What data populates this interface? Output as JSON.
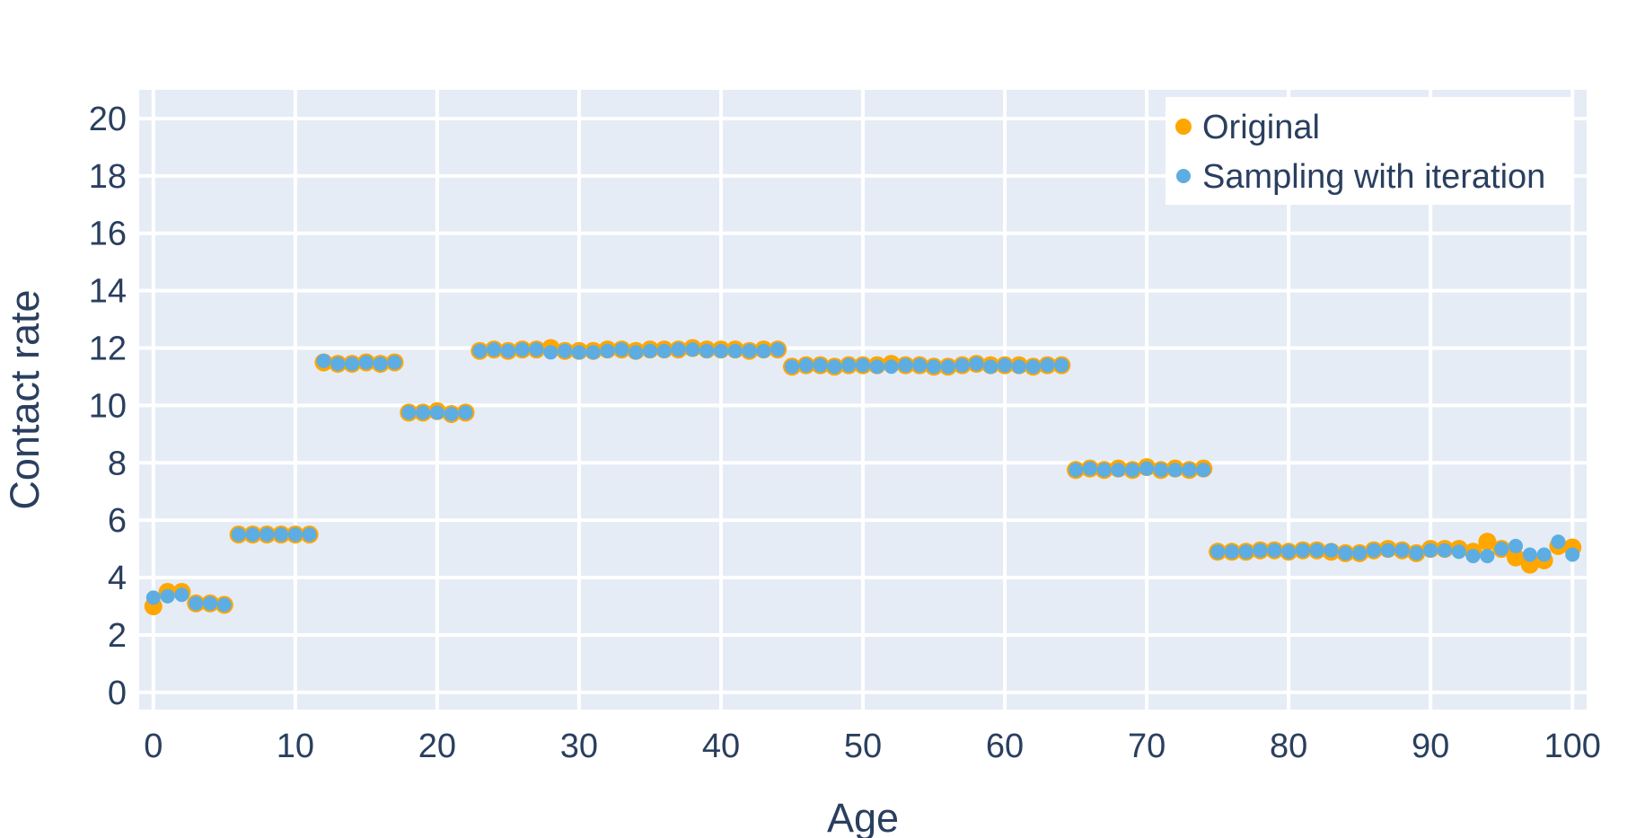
{
  "chart_data": {
    "type": "scatter",
    "title": "",
    "xlabel": "Age",
    "ylabel": "Contact rate",
    "xlim": [
      -1,
      101
    ],
    "ylim": [
      -0.6,
      21
    ],
    "xticks": [
      0,
      10,
      20,
      30,
      40,
      50,
      60,
      70,
      80,
      90,
      100
    ],
    "yticks": [
      0,
      2,
      4,
      6,
      8,
      10,
      12,
      14,
      16,
      18,
      20
    ],
    "grid": true,
    "legend_position": "top-right",
    "x": [
      0,
      1,
      2,
      3,
      4,
      5,
      6,
      7,
      8,
      9,
      10,
      11,
      12,
      13,
      14,
      15,
      16,
      17,
      18,
      19,
      20,
      21,
      22,
      23,
      24,
      25,
      26,
      27,
      28,
      29,
      30,
      31,
      32,
      33,
      34,
      35,
      36,
      37,
      38,
      39,
      40,
      41,
      42,
      43,
      44,
      45,
      46,
      47,
      48,
      49,
      50,
      51,
      52,
      53,
      54,
      55,
      56,
      57,
      58,
      59,
      60,
      61,
      62,
      63,
      64,
      65,
      66,
      67,
      68,
      69,
      70,
      71,
      72,
      73,
      74,
      75,
      76,
      77,
      78,
      79,
      80,
      81,
      82,
      83,
      84,
      85,
      86,
      87,
      88,
      89,
      90,
      91,
      92,
      93,
      94,
      95,
      96,
      97,
      98,
      99,
      100
    ],
    "series": [
      {
        "name": "Original",
        "color": "#ffa600",
        "values": [
          3.0,
          3.5,
          3.5,
          3.1,
          3.1,
          3.05,
          5.5,
          5.5,
          5.5,
          5.5,
          5.5,
          5.5,
          11.5,
          11.45,
          11.45,
          11.5,
          11.45,
          11.5,
          9.75,
          9.75,
          9.8,
          9.7,
          9.75,
          11.9,
          11.95,
          11.9,
          11.95,
          11.95,
          12.0,
          11.9,
          11.9,
          11.9,
          11.95,
          11.95,
          11.9,
          11.95,
          11.95,
          11.95,
          12.0,
          11.95,
          11.95,
          11.95,
          11.9,
          11.95,
          11.95,
          11.35,
          11.4,
          11.4,
          11.35,
          11.4,
          11.4,
          11.4,
          11.45,
          11.4,
          11.4,
          11.35,
          11.35,
          11.4,
          11.45,
          11.4,
          11.4,
          11.4,
          11.35,
          11.4,
          11.4,
          7.75,
          7.8,
          7.75,
          7.8,
          7.75,
          7.85,
          7.75,
          7.8,
          7.75,
          7.8,
          4.9,
          4.9,
          4.9,
          4.95,
          4.95,
          4.9,
          4.95,
          4.95,
          4.9,
          4.85,
          4.85,
          4.95,
          5.0,
          4.95,
          4.85,
          5.0,
          5.0,
          5.0,
          4.9,
          5.25,
          5.0,
          4.7,
          4.45,
          4.6,
          5.1,
          5.05
        ]
      },
      {
        "name": "Sampling with iteration",
        "color": "#5dade2",
        "values": [
          3.3,
          3.35,
          3.4,
          3.1,
          3.1,
          3.05,
          5.5,
          5.5,
          5.5,
          5.5,
          5.5,
          5.5,
          11.55,
          11.45,
          11.45,
          11.5,
          11.45,
          11.5,
          9.75,
          9.75,
          9.75,
          9.7,
          9.75,
          11.9,
          11.95,
          11.9,
          11.95,
          11.95,
          11.85,
          11.9,
          11.85,
          11.85,
          11.9,
          11.95,
          11.85,
          11.9,
          11.9,
          11.95,
          11.95,
          11.9,
          11.9,
          11.9,
          11.9,
          11.9,
          11.95,
          11.35,
          11.4,
          11.4,
          11.35,
          11.4,
          11.4,
          11.35,
          11.35,
          11.4,
          11.4,
          11.35,
          11.35,
          11.4,
          11.45,
          11.35,
          11.4,
          11.35,
          11.35,
          11.4,
          11.4,
          7.75,
          7.8,
          7.75,
          7.75,
          7.75,
          7.8,
          7.75,
          7.75,
          7.75,
          7.75,
          4.9,
          4.9,
          4.9,
          4.95,
          4.95,
          4.9,
          4.95,
          4.95,
          4.95,
          4.85,
          4.85,
          4.95,
          4.95,
          4.95,
          4.85,
          4.95,
          4.95,
          4.9,
          4.75,
          4.75,
          5.0,
          5.1,
          4.8,
          4.8,
          5.25,
          4.8
        ]
      }
    ]
  }
}
